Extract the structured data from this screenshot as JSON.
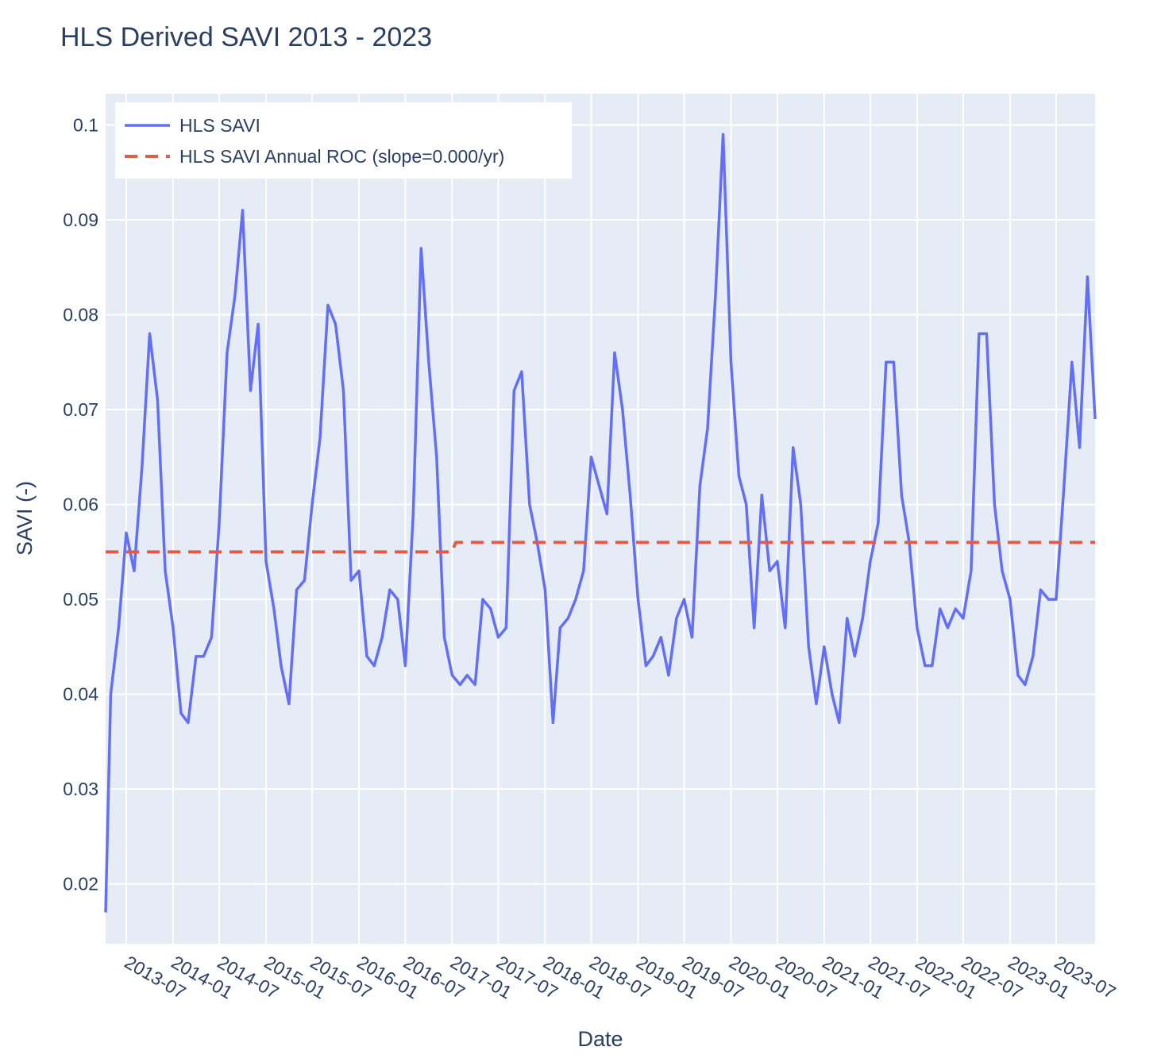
{
  "chart_data": {
    "type": "line",
    "title": "HLS Derived SAVI 2013 - 2023",
    "xlabel": "Date",
    "ylabel": "SAVI (-)",
    "xlim": [
      "2013-04-11",
      "2023-12-01"
    ],
    "ylim": [
      0.0137,
      0.1033
    ],
    "grid": true,
    "legend_position": "top-left",
    "plot_background": "#e5ecf6",
    "x_ticks": [
      "2013-07",
      "2014-01",
      "2014-07",
      "2015-01",
      "2015-07",
      "2016-01",
      "2016-07",
      "2017-01",
      "2017-07",
      "2018-01",
      "2018-07",
      "2019-01",
      "2019-07",
      "2020-01",
      "2020-07",
      "2021-01",
      "2021-07",
      "2022-01",
      "2022-07",
      "2023-01",
      "2023-07"
    ],
    "y_ticks": [
      {
        "value": 0.02,
        "label": "0.02"
      },
      {
        "value": 0.03,
        "label": "0.03"
      },
      {
        "value": 0.04,
        "label": "0.04"
      },
      {
        "value": 0.05,
        "label": "0.05"
      },
      {
        "value": 0.06,
        "label": "0.06"
      },
      {
        "value": 0.07,
        "label": "0.07"
      },
      {
        "value": 0.08,
        "label": "0.08"
      },
      {
        "value": 0.09,
        "label": "0.09"
      },
      {
        "value": 0.1,
        "label": "0.1"
      }
    ],
    "series": [
      {
        "name": "HLS SAVI",
        "color": "#636efa",
        "dash": "solid",
        "points": [
          [
            "2013-04-11",
            0.017
          ],
          [
            "2013-05-01",
            0.04
          ],
          [
            "2013-06-01",
            0.047
          ],
          [
            "2013-07-01",
            0.057
          ],
          [
            "2013-08-01",
            0.053
          ],
          [
            "2013-09-01",
            0.064
          ],
          [
            "2013-10-01",
            0.078
          ],
          [
            "2013-11-01",
            0.071
          ],
          [
            "2013-12-01",
            0.053
          ],
          [
            "2014-01-01",
            0.047
          ],
          [
            "2014-02-01",
            0.038
          ],
          [
            "2014-03-01",
            0.037
          ],
          [
            "2014-04-01",
            0.044
          ],
          [
            "2014-05-01",
            0.044
          ],
          [
            "2014-06-01",
            0.046
          ],
          [
            "2014-07-01",
            0.058
          ],
          [
            "2014-08-01",
            0.076
          ],
          [
            "2014-09-01",
            0.082
          ],
          [
            "2014-10-01",
            0.091
          ],
          [
            "2014-11-01",
            0.072
          ],
          [
            "2014-12-01",
            0.079
          ],
          [
            "2015-01-01",
            0.054
          ],
          [
            "2015-02-01",
            0.049
          ],
          [
            "2015-03-01",
            0.043
          ],
          [
            "2015-04-01",
            0.039
          ],
          [
            "2015-05-01",
            0.051
          ],
          [
            "2015-06-01",
            0.052
          ],
          [
            "2015-07-01",
            0.06
          ],
          [
            "2015-08-01",
            0.067
          ],
          [
            "2015-09-01",
            0.081
          ],
          [
            "2015-10-01",
            0.079
          ],
          [
            "2015-11-01",
            0.072
          ],
          [
            "2015-12-01",
            0.052
          ],
          [
            "2016-01-01",
            0.053
          ],
          [
            "2016-02-01",
            0.044
          ],
          [
            "2016-03-01",
            0.043
          ],
          [
            "2016-04-01",
            0.046
          ],
          [
            "2016-05-01",
            0.051
          ],
          [
            "2016-06-01",
            0.05
          ],
          [
            "2016-07-01",
            0.043
          ],
          [
            "2016-08-01",
            0.059
          ],
          [
            "2016-09-01",
            0.087
          ],
          [
            "2016-10-01",
            0.075
          ],
          [
            "2016-11-01",
            0.065
          ],
          [
            "2016-12-01",
            0.046
          ],
          [
            "2017-01-01",
            0.042
          ],
          [
            "2017-02-01",
            0.041
          ],
          [
            "2017-03-01",
            0.042
          ],
          [
            "2017-04-01",
            0.041
          ],
          [
            "2017-05-01",
            0.05
          ],
          [
            "2017-06-01",
            0.049
          ],
          [
            "2017-07-01",
            0.046
          ],
          [
            "2017-08-01",
            0.047
          ],
          [
            "2017-09-01",
            0.072
          ],
          [
            "2017-10-01",
            0.074
          ],
          [
            "2017-11-01",
            0.06
          ],
          [
            "2017-12-01",
            0.056
          ],
          [
            "2018-01-01",
            0.051
          ],
          [
            "2018-02-01",
            0.037
          ],
          [
            "2018-03-01",
            0.047
          ],
          [
            "2018-04-01",
            0.048
          ],
          [
            "2018-05-01",
            0.05
          ],
          [
            "2018-06-01",
            0.053
          ],
          [
            "2018-07-01",
            0.065
          ],
          [
            "2018-08-01",
            0.062
          ],
          [
            "2018-09-01",
            0.059
          ],
          [
            "2018-10-01",
            0.076
          ],
          [
            "2018-11-01",
            0.07
          ],
          [
            "2018-12-01",
            0.061
          ],
          [
            "2019-01-01",
            0.05
          ],
          [
            "2019-02-01",
            0.043
          ],
          [
            "2019-03-01",
            0.044
          ],
          [
            "2019-04-01",
            0.046
          ],
          [
            "2019-05-01",
            0.042
          ],
          [
            "2019-06-01",
            0.048
          ],
          [
            "2019-07-01",
            0.05
          ],
          [
            "2019-08-01",
            0.046
          ],
          [
            "2019-09-01",
            0.062
          ],
          [
            "2019-10-01",
            0.068
          ],
          [
            "2019-11-01",
            0.082
          ],
          [
            "2019-12-01",
            0.099
          ],
          [
            "2020-01-01",
            0.075
          ],
          [
            "2020-02-01",
            0.063
          ],
          [
            "2020-03-01",
            0.06
          ],
          [
            "2020-04-01",
            0.047
          ],
          [
            "2020-05-01",
            0.061
          ],
          [
            "2020-06-01",
            0.053
          ],
          [
            "2020-07-01",
            0.054
          ],
          [
            "2020-08-01",
            0.047
          ],
          [
            "2020-09-01",
            0.066
          ],
          [
            "2020-10-01",
            0.06
          ],
          [
            "2020-11-01",
            0.045
          ],
          [
            "2020-12-01",
            0.039
          ],
          [
            "2021-01-01",
            0.045
          ],
          [
            "2021-02-01",
            0.04
          ],
          [
            "2021-03-01",
            0.037
          ],
          [
            "2021-04-01",
            0.048
          ],
          [
            "2021-05-01",
            0.044
          ],
          [
            "2021-06-01",
            0.048
          ],
          [
            "2021-07-01",
            0.054
          ],
          [
            "2021-08-01",
            0.058
          ],
          [
            "2021-09-01",
            0.075
          ],
          [
            "2021-10-01",
            0.075
          ],
          [
            "2021-11-01",
            0.061
          ],
          [
            "2021-12-01",
            0.056
          ],
          [
            "2022-01-01",
            0.047
          ],
          [
            "2022-02-01",
            0.043
          ],
          [
            "2022-03-01",
            0.043
          ],
          [
            "2022-04-01",
            0.049
          ],
          [
            "2022-05-01",
            0.047
          ],
          [
            "2022-06-01",
            0.049
          ],
          [
            "2022-07-01",
            0.048
          ],
          [
            "2022-08-01",
            0.053
          ],
          [
            "2022-09-01",
            0.078
          ],
          [
            "2022-10-01",
            0.078
          ],
          [
            "2022-11-01",
            0.06
          ],
          [
            "2022-12-01",
            0.053
          ],
          [
            "2023-01-01",
            0.05
          ],
          [
            "2023-02-01",
            0.042
          ],
          [
            "2023-03-01",
            0.041
          ],
          [
            "2023-04-01",
            0.044
          ],
          [
            "2023-05-01",
            0.051
          ],
          [
            "2023-06-01",
            0.05
          ],
          [
            "2023-07-01",
            0.05
          ],
          [
            "2023-08-01",
            0.062
          ],
          [
            "2023-09-01",
            0.075
          ],
          [
            "2023-10-01",
            0.066
          ],
          [
            "2023-11-01",
            0.084
          ],
          [
            "2023-12-01",
            0.069
          ]
        ]
      },
      {
        "name": "HLS SAVI Annual ROC (slope=0.000/yr)",
        "color": "#e45b48",
        "dash": "dashed",
        "points": [
          [
            "2013-04-11",
            0.055
          ],
          [
            "2016-12-31",
            0.055
          ],
          [
            "2017-01-15",
            0.056
          ],
          [
            "2023-12-01",
            0.056
          ]
        ]
      }
    ]
  }
}
